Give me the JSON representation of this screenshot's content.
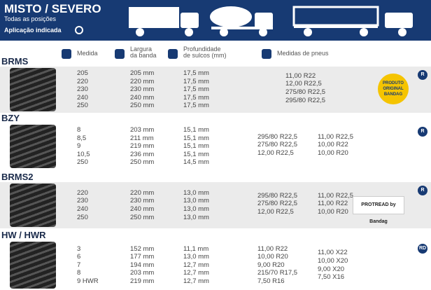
{
  "header": {
    "title": "MISTO / SEVERO",
    "subtitle": "Todas as posições",
    "application": "Aplicação indicada"
  },
  "columns": [
    "Medida",
    "Largura\nda banda",
    "Profundidade\nde sulcos (mm)",
    "Medidas de pneus"
  ],
  "sections": [
    {
      "name": "BRMS",
      "badge": "R",
      "logo": "PRODUTO ORIGINAL BANDAG",
      "medida": [
        "205",
        "220",
        "230",
        "240",
        "250"
      ],
      "largura": [
        "205 mm",
        "220 mm",
        "230 mm",
        "240 mm",
        "250 mm"
      ],
      "profundidade": [
        "17,5 mm",
        "17,5 mm",
        "17,5 mm",
        "17,5 mm",
        "17,5 mm"
      ],
      "pneus": [
        [
          "11,00 R22",
          "12,00 R22,5",
          "275/80 R22,5",
          "295/80 R22,5"
        ]
      ]
    },
    {
      "name": "BZY",
      "badge": "R",
      "medida": [
        "8",
        "8,5",
        "9",
        "10,5",
        "250"
      ],
      "largura": [
        "203 mm",
        "211 mm",
        "219 mm",
        "236 mm",
        "250 mm"
      ],
      "profundidade": [
        "15,1 mm",
        "15,1 mm",
        "15,1 mm",
        "15,1 mm",
        "14,5 mm"
      ],
      "pneus": [
        [
          "295/80 R22,5",
          "275/80 R22,5",
          "12,00 R22,5"
        ],
        [
          "11,00 R22,5",
          "10,00 R22",
          "10,00 R20"
        ]
      ]
    },
    {
      "name": "BRMS2",
      "badge": "R",
      "logo": "PROTREAD by Bandag",
      "medida": [
        "220",
        "230",
        "240",
        "250"
      ],
      "largura": [
        "220 mm",
        "230 mm",
        "240 mm",
        "250 mm"
      ],
      "profundidade": [
        "13,0 mm",
        "13,0 mm",
        "13,0 mm",
        "13,0 mm"
      ],
      "pneus": [
        [
          "295/80 R22,5",
          "275/80 R22,5",
          "12,00 R22,5"
        ],
        [
          "11,00 R22,5",
          "11,00 R22",
          "10,00 R20"
        ]
      ]
    },
    {
      "name": "HW / HWR",
      "badge": "RD",
      "medida": [
        "3",
        "6",
        "7",
        "8",
        "9 HWR"
      ],
      "largura": [
        "152 mm",
        "177 mm",
        "194 mm",
        "203 mm",
        "219 mm"
      ],
      "profundidade": [
        "11,1 mm",
        "13,0 mm",
        "12,7 mm",
        "12,7 mm",
        "12,7 mm"
      ],
      "pneus": [
        [
          "11,00 R22",
          "10,00 R20",
          "9,00 R20",
          "215/70 R17,5",
          "7,50 R16"
        ],
        [
          "11,00 X22",
          "10,00 X20",
          "9,00 X20",
          "7,50 X16"
        ]
      ]
    }
  ]
}
